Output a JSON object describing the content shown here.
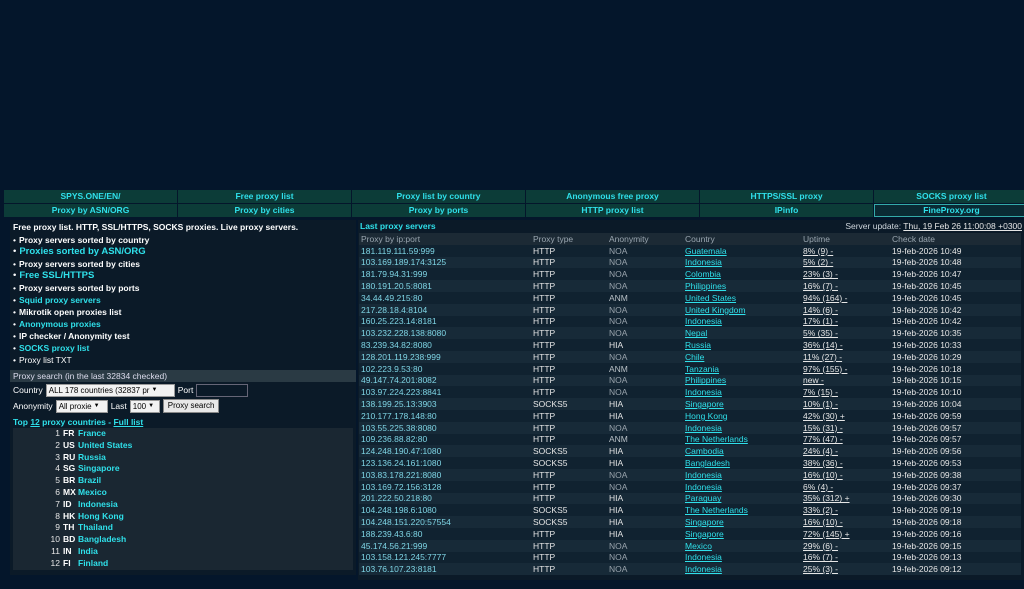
{
  "nav": {
    "row1": [
      "SPYS.ONE/EN/",
      "Free proxy list",
      "Proxy list by country",
      "Anonymous free proxy",
      "HTTPS/SSL proxy",
      "SOCKS proxy list"
    ],
    "row2": [
      "Proxy by ASN/ORG",
      "Proxy by cities",
      "Proxy by ports",
      "HTTP proxy list",
      "IPinfo",
      "FineProxy.org"
    ]
  },
  "left": {
    "intro": "Free proxy list. HTTP, SSL/HTTPS, SOCKS proxies. Live proxy servers.",
    "menu": [
      {
        "label": "Proxy servers sorted by country",
        "style": "white"
      },
      {
        "label": "Proxies sorted by ASN/ORG",
        "style": "cyan big"
      },
      {
        "label": "Proxy servers sorted by cities",
        "style": "white"
      },
      {
        "label": "Free SSL/HTTPS",
        "style": "cyan big"
      },
      {
        "label": "Proxy servers sorted by ports",
        "style": "white"
      },
      {
        "label": "Squid proxy servers",
        "style": "cyan"
      },
      {
        "label": "Mikrotik open proxies list",
        "style": "white"
      },
      {
        "label": "Anonymous proxies",
        "style": "cyan"
      },
      {
        "label": "IP checker / Anonymity test",
        "style": "white"
      },
      {
        "label": "SOCKS proxy list",
        "style": "cyan"
      },
      {
        "label": "Proxy list TXT",
        "style": "plain"
      }
    ],
    "search": {
      "heading": "Proxy search (in the last 32834 checked)",
      "country_label": "Country",
      "country_value": "ALL 178 countries (32837 pr",
      "port_label": "Port",
      "anonymity_label": "Anonymity",
      "anonymity_value": "All proxie",
      "last_label": "Last",
      "last_value": "100",
      "button": "Proxy search"
    },
    "top": {
      "prefix": "Top ",
      "count": "12",
      "middle": " proxy countries - ",
      "full": "Full list",
      "items": [
        {
          "n": "1",
          "cc": "FR",
          "name": "France"
        },
        {
          "n": "2",
          "cc": "US",
          "name": "United States"
        },
        {
          "n": "3",
          "cc": "RU",
          "name": "Russia"
        },
        {
          "n": "4",
          "cc": "SG",
          "name": "Singapore"
        },
        {
          "n": "5",
          "cc": "BR",
          "name": "Brazil"
        },
        {
          "n": "6",
          "cc": "MX",
          "name": "Mexico"
        },
        {
          "n": "7",
          "cc": "ID",
          "name": "Indonesia"
        },
        {
          "n": "8",
          "cc": "HK",
          "name": "Hong Kong"
        },
        {
          "n": "9",
          "cc": "TH",
          "name": "Thailand"
        },
        {
          "n": "10",
          "cc": "BD",
          "name": "Bangladesh"
        },
        {
          "n": "11",
          "cc": "IN",
          "name": "India"
        },
        {
          "n": "12",
          "cc": "FI",
          "name": "Finland"
        }
      ]
    }
  },
  "right": {
    "title": "Last proxy servers",
    "update_label": "Server update: ",
    "update_value": "Thu, 19 Feb 26 11:00:08 +0300",
    "columns": [
      "Proxy by ip:port",
      "Proxy type",
      "Anonymity",
      "Country",
      "Uptime",
      "Check date"
    ],
    "rows": [
      [
        "181.119.111.59:999",
        "HTTP",
        "NOA",
        "Guatemala",
        "8% (9) -",
        "19-feb-2026 10:49"
      ],
      [
        "103.169.189.174:3125",
        "HTTP",
        "NOA",
        "Indonesia",
        "5% (2) -",
        "19-feb-2026 10:48"
      ],
      [
        "181.79.94.31:999",
        "HTTP",
        "NOA",
        "Colombia",
        "23% (3) -",
        "19-feb-2026 10:47"
      ],
      [
        "180.191.20.5:8081",
        "HTTP",
        "NOA",
        "Philippines",
        "16% (7) -",
        "19-feb-2026 10:45"
      ],
      [
        "34.44.49.215:80",
        "HTTP",
        "ANM",
        "United States",
        "94% (164) -",
        "19-feb-2026 10:45"
      ],
      [
        "217.28.18.4:8104",
        "HTTP",
        "NOA",
        "United Kingdom",
        "14% (6) -",
        "19-feb-2026 10:42"
      ],
      [
        "160.25.223.14:8181",
        "HTTP",
        "NOA",
        "Indonesia",
        "17% (1) -",
        "19-feb-2026 10:42"
      ],
      [
        "103.232.228.138:8080",
        "HTTP",
        "NOA",
        "Nepal",
        "5% (35) -",
        "19-feb-2026 10:35"
      ],
      [
        "83.239.34.82:8080",
        "HTTP",
        "HIA",
        "Russia",
        "36% (14) -",
        "19-feb-2026 10:33"
      ],
      [
        "128.201.119.238:999",
        "HTTP",
        "NOA",
        "Chile",
        "11% (27) -",
        "19-feb-2026 10:29"
      ],
      [
        "102.223.9.53:80",
        "HTTP",
        "ANM",
        "Tanzania",
        "97% (155) -",
        "19-feb-2026 10:18"
      ],
      [
        "49.147.74.201:8082",
        "HTTP",
        "NOA",
        "Philippines",
        "new -",
        "19-feb-2026 10:15"
      ],
      [
        "103.97.224.223:8841",
        "HTTP",
        "NOA",
        "Indonesia",
        "7% (15) -",
        "19-feb-2026 10:10"
      ],
      [
        "138.199.25.13:3903",
        "SOCKS5",
        "HIA",
        "Singapore",
        "10% (1) -",
        "19-feb-2026 10:04"
      ],
      [
        "210.177.178.148:80",
        "HTTP",
        "HIA",
        "Hong Kong",
        "42% (30) +",
        "19-feb-2026 09:59"
      ],
      [
        "103.55.225.38:8080",
        "HTTP",
        "NOA",
        "Indonesia",
        "15% (31) -",
        "19-feb-2026 09:57"
      ],
      [
        "109.236.88.82:80",
        "HTTP",
        "ANM",
        "The Netherlands",
        "77% (47) -",
        "19-feb-2026 09:57"
      ],
      [
        "124.248.190.47:1080",
        "SOCKS5",
        "HIA",
        "Cambodia",
        "24% (4) -",
        "19-feb-2026 09:56"
      ],
      [
        "123.136.24.161:1080",
        "SOCKS5",
        "HIA",
        "Bangladesh",
        "38% (36) -",
        "19-feb-2026 09:53"
      ],
      [
        "103.83.178.221:8080",
        "HTTP",
        "NOA",
        "Indonesia",
        "16% (10) -",
        "19-feb-2026 09:38"
      ],
      [
        "103.169.72.156:3128",
        "HTTP",
        "NOA",
        "Indonesia",
        "6% (4) -",
        "19-feb-2026 09:37"
      ],
      [
        "201.222.50.218:80",
        "HTTP",
        "HIA",
        "Paraguay",
        "35% (312) +",
        "19-feb-2026 09:30"
      ],
      [
        "104.248.198.6:1080",
        "SOCKS5",
        "HIA",
        "The Netherlands",
        "33% (2) -",
        "19-feb-2026 09:19"
      ],
      [
        "104.248.151.220:57554",
        "SOCKS5",
        "HIA",
        "Singapore",
        "16% (10) -",
        "19-feb-2026 09:18"
      ],
      [
        "188.239.43.6:80",
        "HTTP",
        "HIA",
        "Singapore",
        "72% (145) +",
        "19-feb-2026 09:16"
      ],
      [
        "45.174.56.21:999",
        "HTTP",
        "NOA",
        "Mexico",
        "29% (6) -",
        "19-feb-2026 09:15"
      ],
      [
        "103.158.121.245:7777",
        "HTTP",
        "NOA",
        "Indonesia",
        "16% (7) -",
        "19-feb-2026 09:13"
      ],
      [
        "103.76.107.23:8181",
        "HTTP",
        "NOA",
        "Indonesia",
        "25% (3) -",
        "19-feb-2026 09:12"
      ]
    ]
  }
}
